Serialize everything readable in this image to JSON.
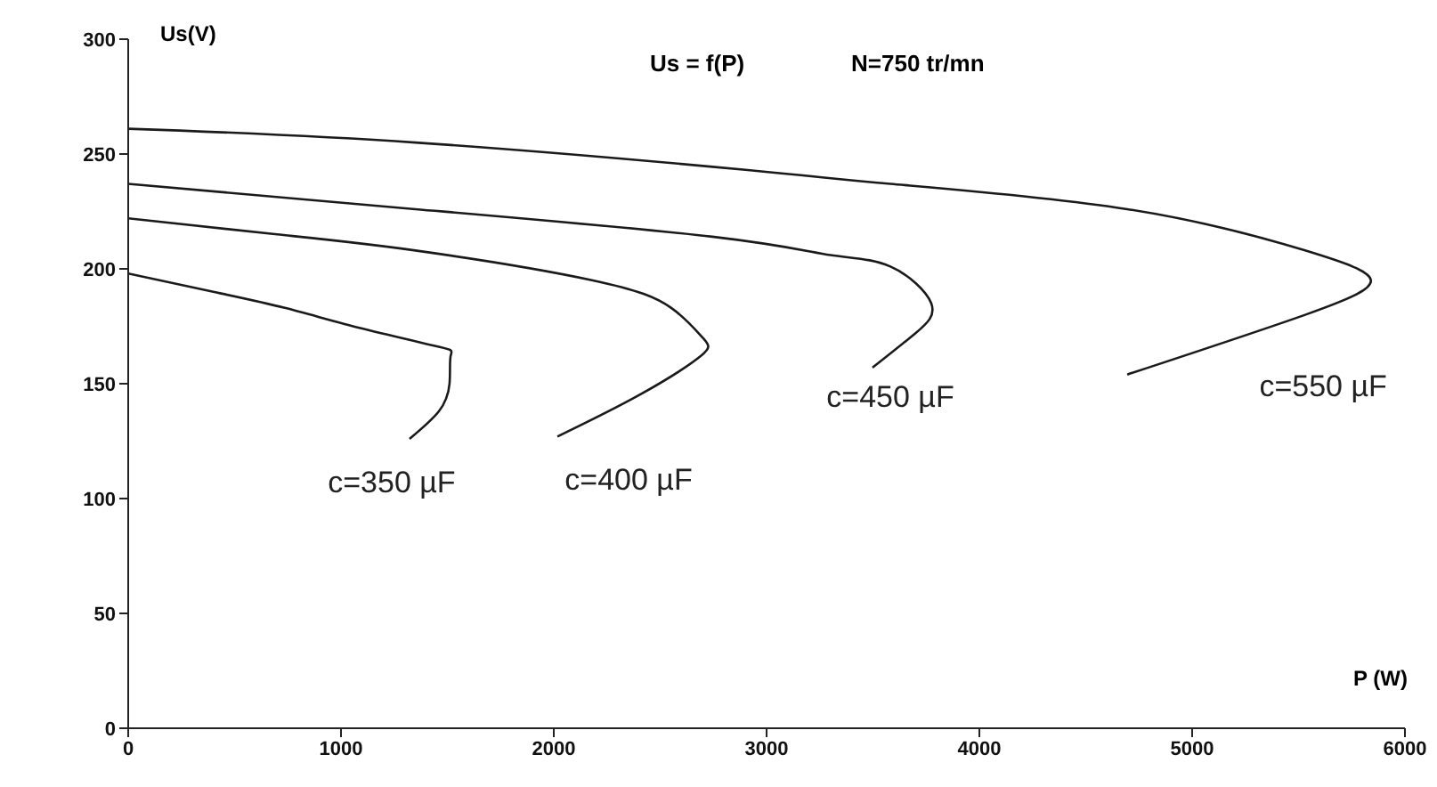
{
  "chart_data": {
    "type": "line",
    "title": "Us = f(P)",
    "subtitle": "N=750 tr/mn",
    "xlabel": "P (W)",
    "ylabel": "Us(V)",
    "xlim": [
      0,
      6000
    ],
    "xticks": [
      0,
      1000,
      2000,
      3000,
      4000,
      5000,
      6000
    ],
    "ylim": [
      0,
      300
    ],
    "yticks": [
      0,
      50,
      100,
      150,
      200,
      250,
      300
    ],
    "marker": "none",
    "line_style": "solid",
    "series": [
      {
        "name": "c=350 µF",
        "color": "#1a1a1a",
        "x": [
          0,
          400,
          736,
          1100,
          1464,
          1515,
          1510,
          1460,
          1322
        ],
        "values": [
          198,
          190,
          183,
          174,
          166,
          162,
          150,
          138,
          126
        ]
      },
      {
        "name": "c=400 µF",
        "color": "#1a1a1a",
        "x": [
          0,
          700,
          1350,
          2184,
          2552,
          2700,
          2690,
          2400,
          2017
        ],
        "values": [
          222,
          215,
          208,
          195,
          183,
          170,
          162,
          145,
          127
        ]
      },
      {
        "name": "c=450 µF",
        "color": "#1a1a1a",
        "x": [
          0,
          1350,
          2745,
          3300,
          3582,
          3774,
          3700,
          3498
        ],
        "values": [
          237,
          226,
          214,
          206,
          201,
          185,
          172,
          157
        ]
      },
      {
        "name": "c=550 µF",
        "color": "#1a1a1a",
        "x": [
          0,
          1350,
          2912,
          3582,
          4695,
          5531,
          5840,
          5531,
          4695
        ],
        "values": [
          261,
          255,
          243,
          237,
          226,
          208,
          195,
          180,
          154
        ]
      }
    ]
  }
}
